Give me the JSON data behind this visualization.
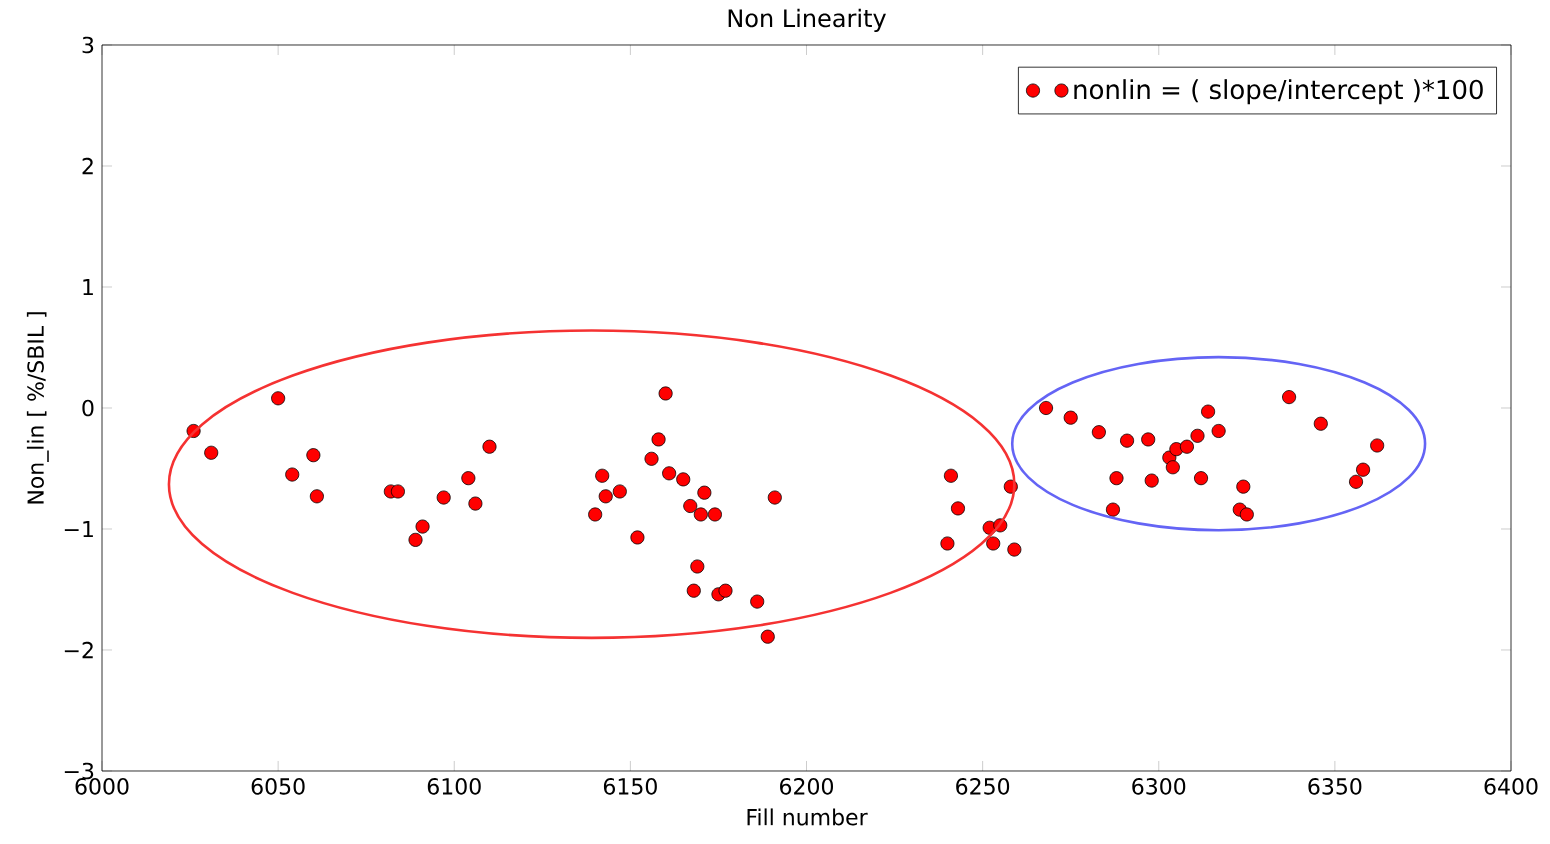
{
  "chart_data": {
    "type": "scatter",
    "title": "Non Linearity",
    "xlabel": "Fill number",
    "ylabel": "Non_lin  [ %/SBIL ]",
    "xlim": [
      6000,
      6400
    ],
    "xticks": [
      6000,
      6050,
      6100,
      6150,
      6200,
      6250,
      6300,
      6350,
      6400
    ],
    "ylim": [
      -3,
      3
    ],
    "yticks": [
      {
        "value": -3,
        "label": "−3"
      },
      {
        "value": -2,
        "label": "−2"
      },
      {
        "value": -1,
        "label": "−1"
      },
      0,
      1,
      2,
      3
    ],
    "marker": "circle",
    "legend": "top right",
    "series": [
      {
        "name": "nonlin = ( slope/intercept )*100",
        "color": "#ff0000",
        "x": [
          6026,
          6031,
          6050,
          6054,
          6060,
          6061,
          6082,
          6084,
          6089,
          6091,
          6097,
          6104,
          6106,
          6110,
          6140,
          6142,
          6143,
          6147,
          6152,
          6156,
          6158,
          6160,
          6161,
          6165,
          6167,
          6169,
          6168,
          6170,
          6171,
          6174,
          6175,
          6177,
          6186,
          6189,
          6191,
          6240,
          6241,
          6243,
          6252,
          6253,
          6255,
          6258,
          6259,
          6268,
          6275,
          6283,
          6287,
          6288,
          6291,
          6297,
          6298,
          6303,
          6304,
          6305,
          6308,
          6311,
          6312,
          6314,
          6317,
          6323,
          6324,
          6325,
          6337,
          6346,
          6356,
          6358,
          6362
        ],
        "values": [
          -0.19,
          -0.37,
          0.08,
          -0.55,
          -0.39,
          -0.73,
          -0.69,
          -0.69,
          -1.09,
          -0.98,
          -0.74,
          -0.58,
          -0.79,
          -0.32,
          -0.88,
          -0.56,
          -0.73,
          -0.69,
          -1.07,
          -0.42,
          -0.26,
          0.12,
          -0.54,
          -0.59,
          -0.81,
          -1.31,
          -1.51,
          -0.88,
          -0.7,
          -0.88,
          -1.54,
          -1.51,
          -1.6,
          -1.89,
          -0.74,
          -1.12,
          -0.56,
          -0.83,
          -0.99,
          -1.12,
          -0.97,
          -0.65,
          -1.17,
          0.0,
          -0.08,
          -0.2,
          -0.84,
          -0.58,
          -0.27,
          -0.26,
          -0.6,
          -0.41,
          -0.49,
          -0.34,
          -0.32,
          -0.23,
          -0.58,
          -0.03,
          -0.19,
          -0.84,
          -0.65,
          -0.88,
          0.09,
          -0.13,
          -0.61,
          -0.51,
          -0.31
        ]
      }
    ]
  }
}
